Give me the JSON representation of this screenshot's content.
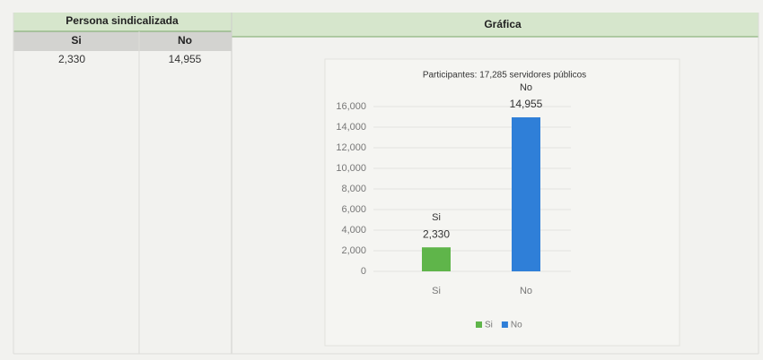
{
  "table": {
    "title": "Persona sindicalizada",
    "header": [
      "Si",
      "No"
    ],
    "rows": [
      [
        "2,330",
        "14,955"
      ]
    ]
  },
  "panel": {
    "title": "Gráfica"
  },
  "chart_data": {
    "type": "bar",
    "title": "Participantes: 17,285 servidores públicos",
    "categories": [
      "Si",
      "No"
    ],
    "values": [
      2330,
      14955
    ],
    "value_labels": [
      "2,330",
      "14,955"
    ],
    "colors": [
      "#5fb54a",
      "#2f7fd8"
    ],
    "ylim": [
      0,
      16000
    ],
    "yticks": [
      0,
      {
        "value": 2000,
        "label": "2,000"
      },
      {
        "value": 4000,
        "label": "4,000"
      },
      {
        "value": 6000,
        "label": "6,000"
      },
      {
        "value": 8000,
        "label": "8,000"
      },
      {
        "value": 10000,
        "label": "10,000"
      },
      {
        "value": 12000,
        "label": "12,000"
      },
      {
        "value": 14000,
        "label": "14,000"
      },
      {
        "value": 16000,
        "label": "16,000"
      }
    ],
    "grid": true,
    "legend": "bottom"
  }
}
